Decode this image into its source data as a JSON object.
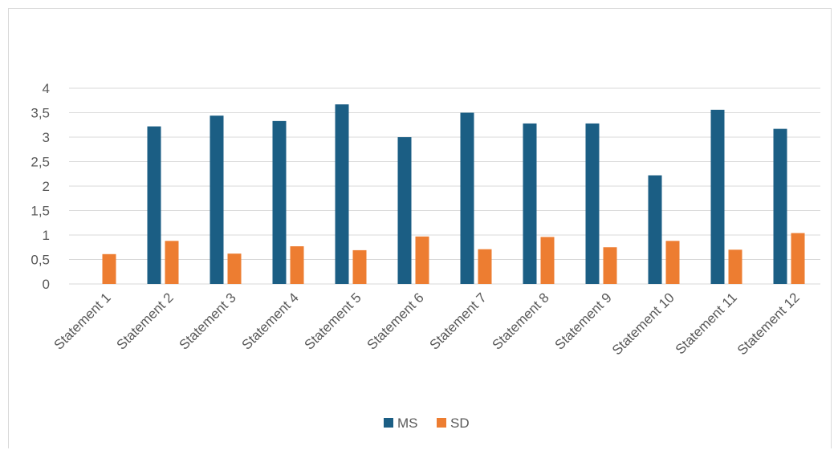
{
  "chart_data": {
    "type": "bar",
    "categories": [
      "Statement 1",
      "Statement 2",
      "Statement 3",
      "Statement 4",
      "Statement 5",
      "Statement 6",
      "Statement 7",
      "Statement 8",
      "Statement 9",
      "Statement 10",
      "Statement 11",
      "Statement 12"
    ],
    "series": [
      {
        "name": "MS",
        "color": "#1b5e84",
        "values": [
          0,
          3.22,
          3.44,
          3.33,
          3.67,
          3.0,
          3.5,
          3.28,
          3.28,
          2.22,
          3.56,
          3.17
        ]
      },
      {
        "name": "SD",
        "color": "#ed7d31",
        "values": [
          0.61,
          0.88,
          0.62,
          0.77,
          0.69,
          0.97,
          0.71,
          0.96,
          0.75,
          0.88,
          0.7,
          1.04
        ]
      }
    ],
    "y_ticks": [
      "0",
      "0,5",
      "1",
      "1,5",
      "2",
      "2,5",
      "3",
      "3,5",
      "4"
    ],
    "ylim": [
      0,
      4
    ],
    "grid": true,
    "legend_position": "bottom"
  }
}
